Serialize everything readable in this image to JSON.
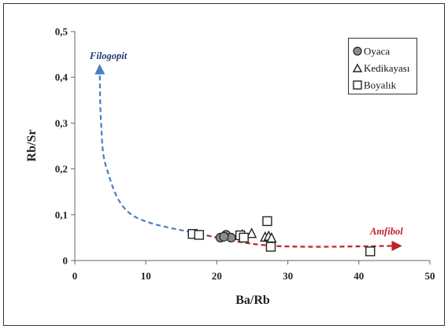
{
  "chart_data": {
    "type": "scatter",
    "title": "",
    "xlabel": "Ba/Rb",
    "ylabel": "Rb/Sr",
    "xlim": [
      0,
      50
    ],
    "ylim": [
      0,
      0.5
    ],
    "xticks": [
      0,
      10,
      20,
      30,
      40,
      50
    ],
    "xtick_labels": [
      "0",
      "10",
      "20",
      "30",
      "40",
      "50"
    ],
    "yticks": [
      0,
      0.1,
      0.2,
      0.3,
      0.4,
      0.5
    ],
    "ytick_labels": [
      "0",
      "0,1",
      "0,2",
      "0,3",
      "0,4",
      "0,5"
    ],
    "grid": false,
    "legend_position": "top-right",
    "series": [
      {
        "name": "Oyaca",
        "marker": "circle",
        "color": "#8c8c8c",
        "points": [
          [
            20.5,
            0.05
          ],
          [
            21.3,
            0.056
          ],
          [
            22.0,
            0.05
          ],
          [
            21.0,
            0.052
          ]
        ]
      },
      {
        "name": "Kedikayası",
        "marker": "triangle",
        "color": "#ffffff",
        "points": [
          [
            23.6,
            0.055
          ],
          [
            24.9,
            0.058
          ],
          [
            26.8,
            0.05
          ],
          [
            27.3,
            0.052
          ],
          [
            27.7,
            0.048
          ]
        ]
      },
      {
        "name": "Boyalık",
        "marker": "square",
        "color": "#ffffff",
        "points": [
          [
            16.6,
            0.058
          ],
          [
            17.5,
            0.056
          ],
          [
            23.3,
            0.055
          ],
          [
            23.8,
            0.05
          ],
          [
            27.1,
            0.086
          ],
          [
            27.6,
            0.03
          ],
          [
            41.6,
            0.02
          ]
        ]
      }
    ],
    "annotations": [
      {
        "text": "Filogopit",
        "color": "#1f3a6e"
      },
      {
        "text": "Amfibol",
        "color": "#c0202a"
      }
    ],
    "trend_curves": [
      {
        "label": "Filogopit",
        "color": "#4a7fc0",
        "style": "dashed",
        "points": [
          [
            17.5,
            0.058
          ],
          [
            8.0,
            0.1
          ],
          [
            4.5,
            0.2
          ],
          [
            3.7,
            0.3
          ],
          [
            3.5,
            0.42
          ]
        ]
      },
      {
        "label": "Amfibol",
        "color": "#c0202a",
        "style": "dashed",
        "points": [
          [
            17.5,
            0.058
          ],
          [
            28.0,
            0.032
          ],
          [
            45.5,
            0.032
          ]
        ]
      }
    ]
  }
}
